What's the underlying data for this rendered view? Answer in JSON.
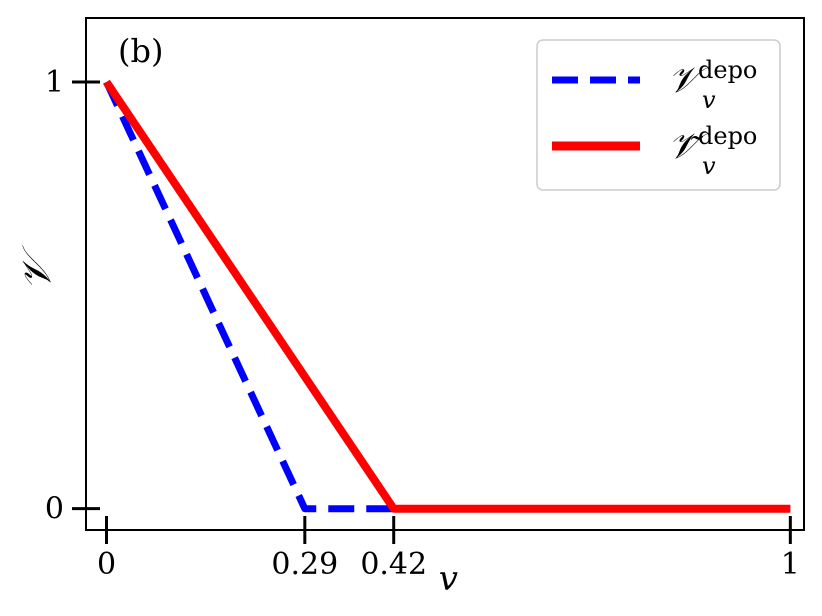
{
  "chart_data": {
    "type": "line",
    "panel_label": "(b)",
    "xlabel": "v",
    "ylabel": "𝒱",
    "xlim": [
      -0.03,
      1.02
    ],
    "ylim": [
      -0.05,
      1.15
    ],
    "x_ticks": [
      {
        "value": 0,
        "label": "0"
      },
      {
        "value": 0.29,
        "label": "0.29"
      },
      {
        "value": 0.42,
        "label": "0.42"
      },
      {
        "value": 1,
        "label": "1"
      }
    ],
    "y_ticks": [
      {
        "value": 0,
        "label": "0"
      },
      {
        "value": 1,
        "label": "1"
      }
    ],
    "grid": false,
    "legend_position": "top-right",
    "series": [
      {
        "name": "𝒱",
        "legend_sup": "depo",
        "legend_sub": "v",
        "color": "#0000ff",
        "style": "dashed",
        "x": [
          0,
          0.29,
          0.42,
          1
        ],
        "y": [
          1,
          0,
          0,
          0
        ]
      },
      {
        "name": "𝒱̃",
        "legend_sup": "depo",
        "legend_sub": "v",
        "color": "#ff0000",
        "style": "solid",
        "x": [
          0,
          0.42,
          1
        ],
        "y": [
          1,
          0,
          0
        ]
      }
    ]
  }
}
